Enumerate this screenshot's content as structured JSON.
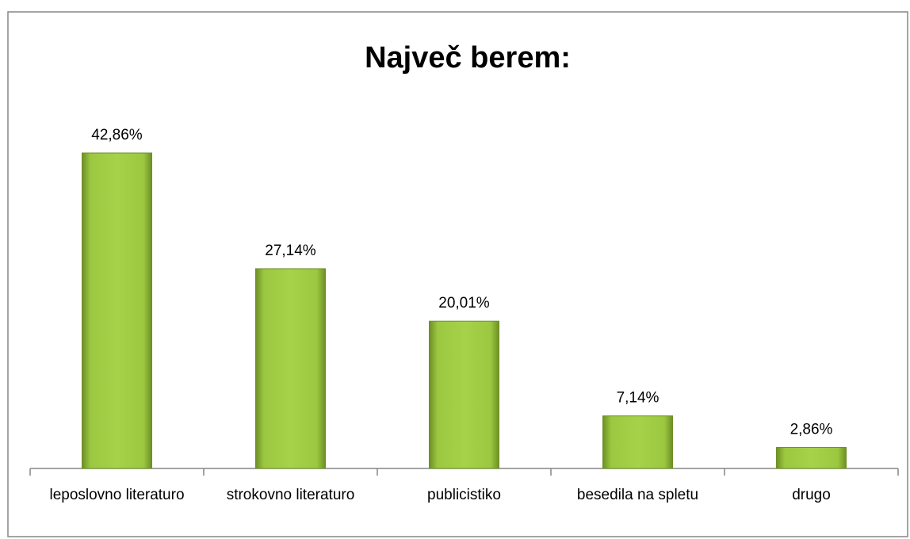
{
  "chart_data": {
    "type": "bar",
    "title": "Največ berem:",
    "categories": [
      "leposlovno literaturo",
      "strokovno literaturo",
      "publicistiko",
      "besedila na spletu",
      "drugo"
    ],
    "values": [
      42.86,
      27.14,
      20.01,
      7.14,
      2.86
    ],
    "value_labels": [
      "42,86%",
      "27,14%",
      "20,01%",
      "7,14%",
      "2,86%"
    ],
    "color": "#9bc840"
  }
}
